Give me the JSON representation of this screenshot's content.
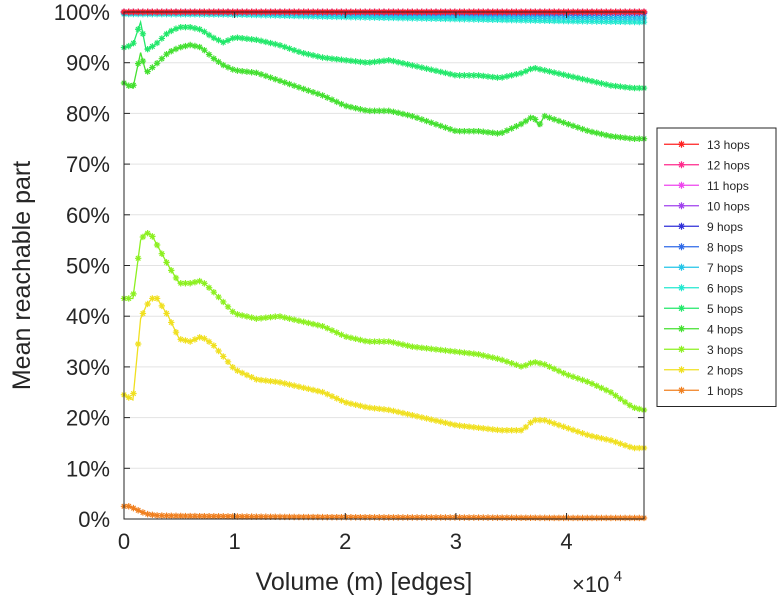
{
  "chart_data": {
    "type": "line",
    "xlabel": "Volume (m) [edges]",
    "ylabel": "Mean reachable part",
    "x_multiplier": {
      "base": "×10",
      "exponent": "4"
    },
    "xlim": [
      0,
      47000
    ],
    "ylim": [
      0,
      100
    ],
    "x_ticks": [
      {
        "value": 0,
        "label": "0"
      },
      {
        "value": 10000,
        "label": "1"
      },
      {
        "value": 20000,
        "label": "2"
      },
      {
        "value": 30000,
        "label": "3"
      },
      {
        "value": 40000,
        "label": "4"
      }
    ],
    "y_ticks": [
      {
        "value": 0,
        "label": "0%"
      },
      {
        "value": 10,
        "label": "10%"
      },
      {
        "value": 20,
        "label": "20%"
      },
      {
        "value": 30,
        "label": "30%"
      },
      {
        "value": 40,
        "label": "40%"
      },
      {
        "value": 50,
        "label": "50%"
      },
      {
        "value": 60,
        "label": "60%"
      },
      {
        "value": 70,
        "label": "70%"
      },
      {
        "value": 80,
        "label": "80%"
      },
      {
        "value": 90,
        "label": "90%"
      },
      {
        "value": 100,
        "label": "100%"
      }
    ],
    "grid": true,
    "legend_position": "right",
    "series": [
      {
        "name": "13 hops",
        "color": "#ff2020",
        "x": [
          0,
          10000,
          20000,
          30000,
          40000,
          47000
        ],
        "y": [
          100,
          100,
          100,
          100,
          100,
          100
        ]
      },
      {
        "name": "12 hops",
        "color": "#ff2a8c",
        "x": [
          0,
          10000,
          20000,
          30000,
          40000,
          47000
        ],
        "y": [
          100,
          100,
          100,
          100,
          100,
          100
        ]
      },
      {
        "name": "11 hops",
        "color": "#ee44ee",
        "x": [
          0,
          10000,
          20000,
          30000,
          40000,
          47000
        ],
        "y": [
          100,
          100,
          100,
          100,
          100,
          100
        ]
      },
      {
        "name": "10 hops",
        "color": "#a040ee",
        "x": [
          0,
          10000,
          20000,
          30000,
          40000,
          47000
        ],
        "y": [
          100,
          100,
          100,
          100,
          100,
          100
        ]
      },
      {
        "name": "9 hops",
        "color": "#2f2fd8",
        "x": [
          0,
          10000,
          20000,
          30000,
          40000,
          47000
        ],
        "y": [
          100,
          100,
          100,
          100,
          100,
          100
        ]
      },
      {
        "name": "8 hops",
        "color": "#2f6ae8",
        "x": [
          0,
          10000,
          20000,
          30000,
          40000,
          47000
        ],
        "y": [
          100,
          100,
          99.9,
          99.8,
          99.7,
          99.7
        ]
      },
      {
        "name": "7 hops",
        "color": "#22c4e8",
        "x": [
          0,
          10000,
          20000,
          30000,
          40000,
          47000
        ],
        "y": [
          99.8,
          99.8,
          99.5,
          99.2,
          99.0,
          98.8
        ]
      },
      {
        "name": "6 hops",
        "color": "#22e8d0",
        "x": [
          0,
          10000,
          20000,
          30000,
          40000,
          47000
        ],
        "y": [
          99.6,
          99.5,
          99.0,
          98.6,
          98.2,
          98.0
        ]
      },
      {
        "name": "5 hops",
        "color": "#22e86a",
        "x": [
          0,
          800,
          1500,
          2000,
          2800,
          4000,
          5000,
          6000,
          7000,
          8000,
          9000,
          10000,
          12000,
          14000,
          16000,
          18000,
          20000,
          22000,
          24000,
          26000,
          28000,
          30000,
          32000,
          34000,
          36000,
          37000,
          38000,
          40000,
          42000,
          44000,
          46000,
          47000
        ],
        "y": [
          93,
          93.5,
          98,
          92.5,
          93.5,
          96,
          97,
          97,
          96.5,
          95,
          94,
          95,
          94.5,
          93.5,
          92,
          91,
          90.5,
          90,
          90.5,
          89.5,
          88.5,
          87.5,
          87.5,
          87,
          88,
          89,
          88.5,
          87.5,
          86.5,
          85.5,
          85,
          85
        ]
      },
      {
        "name": "4 hops",
        "color": "#44e030",
        "x": [
          0,
          800,
          1500,
          2000,
          2800,
          4000,
          5000,
          6000,
          7000,
          8000,
          9000,
          10000,
          12000,
          14000,
          16000,
          18000,
          20000,
          22000,
          24000,
          26000,
          28000,
          30000,
          32000,
          34000,
          36000,
          37000,
          37500,
          38000,
          40000,
          42000,
          44000,
          46000,
          47000
        ],
        "y": [
          86,
          85,
          92,
          88,
          89.5,
          92,
          93,
          93.5,
          93,
          91,
          89.5,
          88.5,
          88,
          86.5,
          85,
          83.5,
          81.5,
          80.5,
          80.5,
          79.5,
          78,
          76.5,
          76.5,
          76,
          78,
          79.5,
          77.5,
          79.5,
          78,
          76.5,
          75.5,
          75,
          75
        ]
      },
      {
        "name": "3 hops",
        "color": "#8cf020",
        "x": [
          0,
          800,
          1500,
          2000,
          2500,
          3000,
          4000,
          5000,
          6000,
          7000,
          8000,
          10000,
          12000,
          14000,
          16000,
          18000,
          20000,
          22000,
          24000,
          26000,
          28000,
          30000,
          32000,
          34000,
          36000,
          37000,
          38000,
          40000,
          42000,
          44000,
          46000,
          47000
        ],
        "y": [
          43.5,
          43.5,
          55,
          56.5,
          56,
          54,
          50,
          46.5,
          46.5,
          47,
          45,
          40.5,
          39.5,
          40,
          39,
          38,
          36,
          35,
          35,
          34,
          33.5,
          33,
          32.5,
          31.5,
          30,
          31,
          30.5,
          28.5,
          27,
          25,
          22,
          21.5
        ]
      },
      {
        "name": "2 hops",
        "color": "#f0e020",
        "x": [
          0,
          800,
          1500,
          2000,
          2500,
          3000,
          4000,
          5000,
          6000,
          7000,
          8000,
          10000,
          12000,
          14000,
          16000,
          18000,
          20000,
          22000,
          24000,
          26000,
          28000,
          30000,
          32000,
          34000,
          36000,
          37000,
          38000,
          40000,
          42000,
          44000,
          46000,
          47000
        ],
        "y": [
          24.5,
          23.5,
          39.5,
          42,
          43.5,
          43.5,
          40,
          35.5,
          35,
          36,
          34.5,
          29.5,
          27.5,
          27,
          26,
          25,
          23,
          22,
          21.5,
          20.5,
          19.5,
          18.5,
          18,
          17.5,
          17.5,
          19.5,
          19.5,
          18,
          16.5,
          15.5,
          14,
          14
        ]
      },
      {
        "name": "1 hops",
        "color": "#f08020",
        "x": [
          0,
          500,
          1000,
          1500,
          2000,
          3000,
          5000,
          10000,
          15000,
          20000,
          25000,
          30000,
          35000,
          40000,
          45000,
          47000
        ],
        "y": [
          2.5,
          2.5,
          2.0,
          1.5,
          1.0,
          0.7,
          0.6,
          0.5,
          0.4,
          0.35,
          0.3,
          0.3,
          0.25,
          0.2,
          0.2,
          0.2
        ]
      }
    ]
  }
}
